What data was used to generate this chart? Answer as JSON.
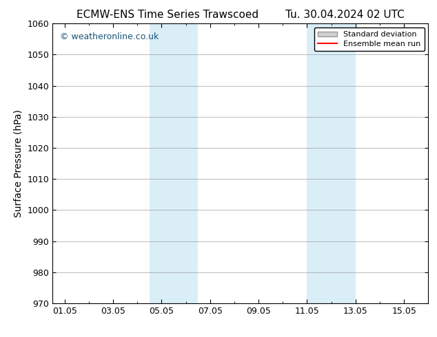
{
  "title_left": "ECMW-ENS Time Series Trawscoed",
  "title_right": "Tu. 30.04.2024 02 UTC",
  "ylabel": "Surface Pressure (hPa)",
  "ylim": [
    970,
    1060
  ],
  "yticks": [
    970,
    980,
    990,
    1000,
    1010,
    1020,
    1030,
    1040,
    1050,
    1060
  ],
  "xtick_labels": [
    "01.05",
    "03.05",
    "05.05",
    "07.05",
    "09.05",
    "11.05",
    "13.05",
    "15.05"
  ],
  "xtick_positions": [
    0,
    2,
    4,
    6,
    8,
    10,
    12,
    14
  ],
  "xlim": [
    -0.5,
    15.0
  ],
  "shaded_bands": [
    {
      "x_start": 3.5,
      "x_end": 5.5
    },
    {
      "x_start": 10.0,
      "x_end": 12.0
    }
  ],
  "shade_color": "#daeef8",
  "shade_alpha": 1.0,
  "watermark_text": "© weatheronline.co.uk",
  "watermark_color": "#1a5276",
  "legend_labels": [
    "Standard deviation",
    "Ensemble mean run"
  ],
  "legend_patch_color": "#d0d0d0",
  "legend_line_color": "#ff0000",
  "background_color": "#ffffff",
  "grid_color": "#888888",
  "title_fontsize": 11,
  "axis_label_fontsize": 10,
  "tick_fontsize": 9,
  "watermark_fontsize": 9,
  "legend_fontsize": 8
}
